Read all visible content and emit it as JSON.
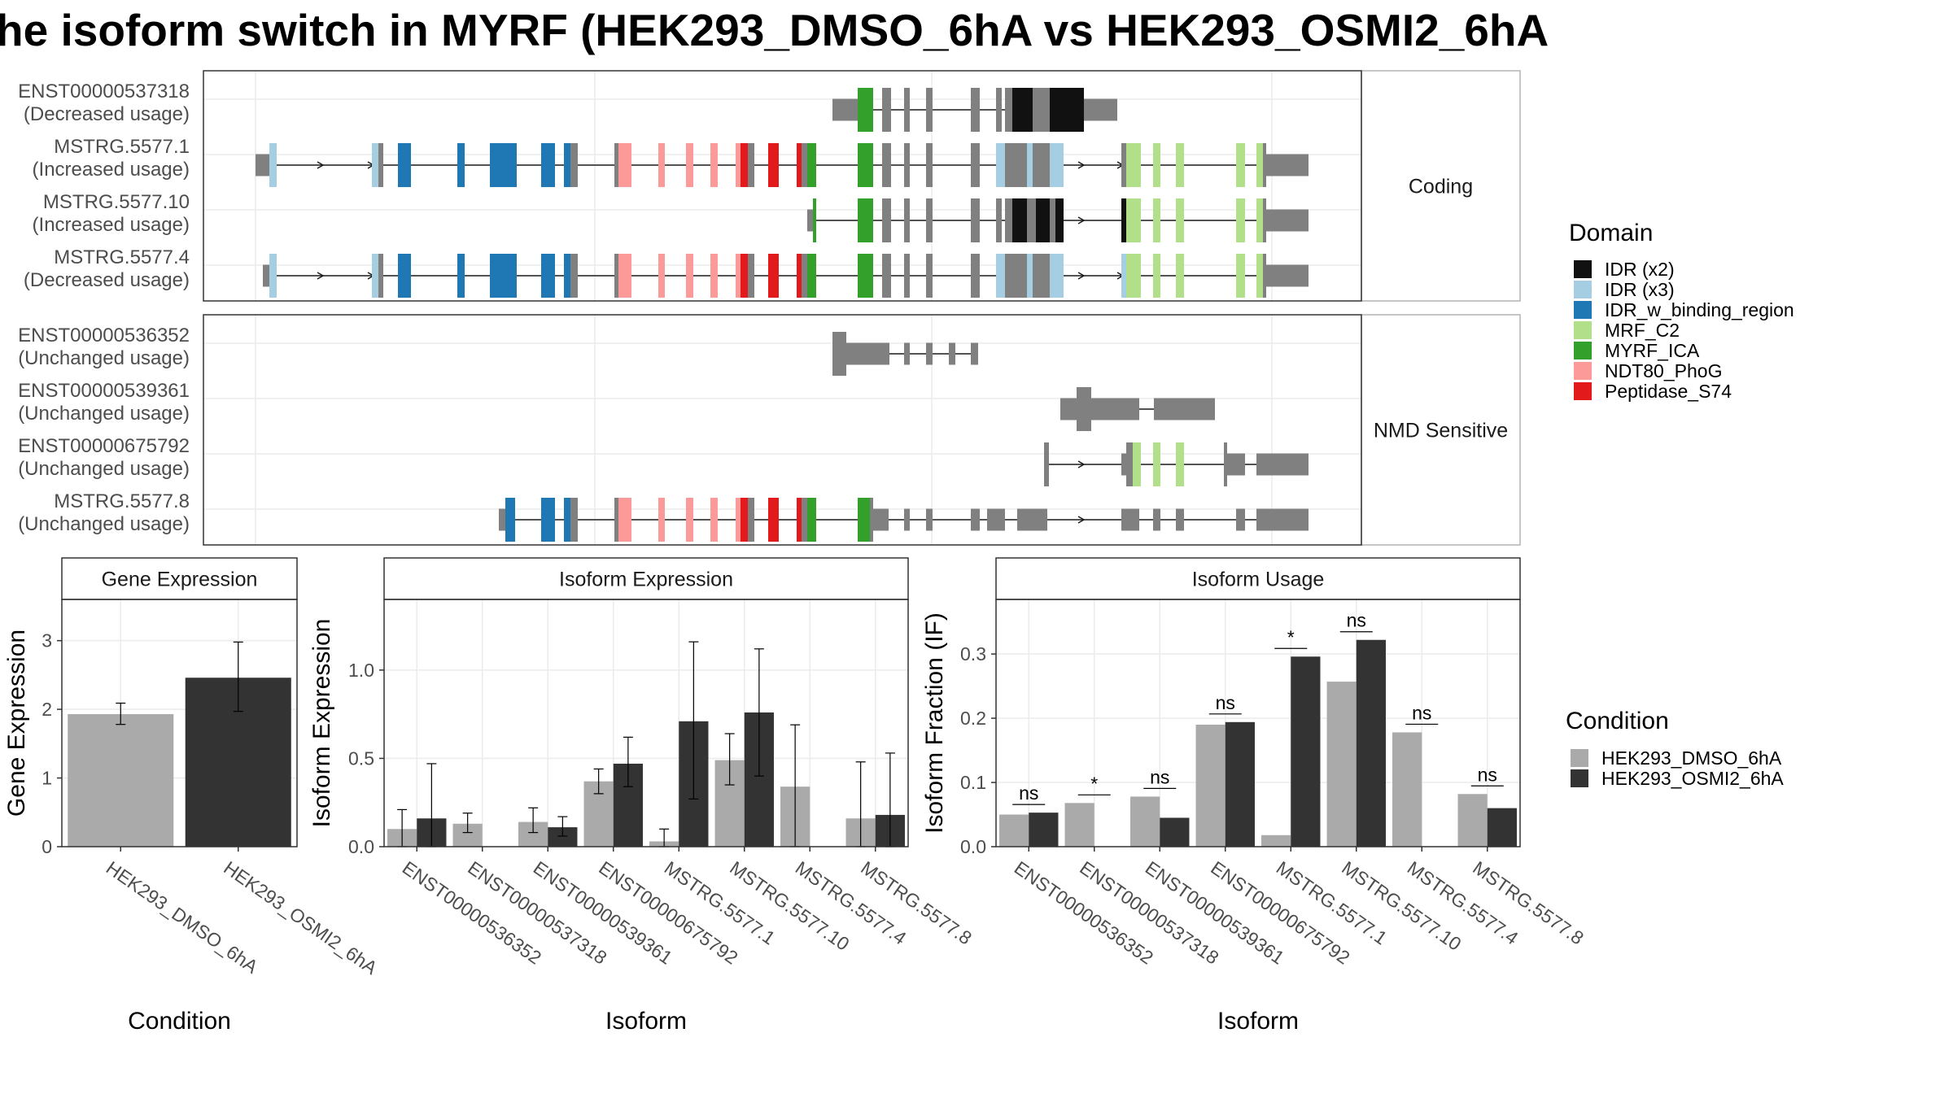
{
  "title": "he isoform switch in MYRF (HEK293_DMSO_6hA vs HEK293_OSMI2_6hA",
  "colors": {
    "dmso": "#aaaaaa",
    "osmi": "#333333",
    "gene_body": "#808080",
    "IDR (x2)": "#111111",
    "IDR (x3)": "#a6cee3",
    "IDR_w_binding_region": "#1f78b4",
    "MRF_C2": "#b2df8a",
    "MYRF_ICA": "#33a02c",
    "NDT80_PhoG": "#fb9a99",
    "Peptidase_S74": "#e31a1c"
  },
  "structure": {
    "panels": [
      {
        "strip": "Coding",
        "tracks": [
          {
            "id": "ENST00000537318",
            "usage": "(Decreased usage)"
          },
          {
            "id": "MSTRG.5577.1",
            "usage": "(Increased usage)"
          },
          {
            "id": "MSTRG.5577.10",
            "usage": "(Increased usage)"
          },
          {
            "id": "MSTRG.5577.4",
            "usage": "(Decreased usage)"
          }
        ]
      },
      {
        "strip": "NMD Sensitive",
        "tracks": [
          {
            "id": "ENST00000536352",
            "usage": "(Unchanged usage)"
          },
          {
            "id": "ENST00000539361",
            "usage": "(Unchanged usage)"
          },
          {
            "id": "ENST00000675792",
            "usage": "(Unchanged usage)"
          },
          {
            "id": "MSTRG.5577.8",
            "usage": "(Unchanged usage)"
          }
        ]
      }
    ]
  },
  "legend_domain": {
    "title": "Domain",
    "items": [
      {
        "label": "IDR (x2)",
        "color": "#111111"
      },
      {
        "label": "IDR (x3)",
        "color": "#a6cee3"
      },
      {
        "label": "IDR_w_binding_region",
        "color": "#1f78b4"
      },
      {
        "label": "MRF_C2",
        "color": "#b2df8a"
      },
      {
        "label": "MYRF_ICA",
        "color": "#33a02c"
      },
      {
        "label": "NDT80_PhoG",
        "color": "#fb9a99"
      },
      {
        "label": "Peptidase_S74",
        "color": "#e31a1c"
      }
    ]
  },
  "legend_condition": {
    "title": "Condition",
    "items": [
      {
        "label": "HEK293_DMSO_6hA",
        "color": "#aaaaaa"
      },
      {
        "label": "HEK293_OSMI2_6hA",
        "color": "#333333"
      }
    ]
  },
  "chart_data": [
    {
      "type": "bar",
      "title": "Gene Expression",
      "xlabel": "Condition",
      "ylabel": "Gene Expression",
      "ylim": [
        0,
        3.6
      ],
      "yticks": [
        0,
        1,
        2,
        3
      ],
      "categories": [
        "HEK293_DMSO_6hA",
        "HEK293_OSMI2_6hA"
      ],
      "values": [
        1.93,
        2.46
      ],
      "err_low": [
        1.78,
        1.97
      ],
      "err_high": [
        2.09,
        2.98
      ],
      "colors": [
        "#aaaaaa",
        "#333333"
      ]
    },
    {
      "type": "bar",
      "title": "Isoform Expression",
      "xlabel": "Isoform",
      "ylabel": "Isoform Expression",
      "ylim": [
        0,
        1.4
      ],
      "yticks": [
        0.0,
        0.5,
        1.0
      ],
      "ytick_labels": [
        "0.0",
        "0.5",
        "1.0"
      ],
      "categories": [
        "ENST00000536352",
        "ENST00000537318",
        "ENST00000539361",
        "ENST00000675792",
        "MSTRG.5577.1",
        "MSTRG.5577.10",
        "MSTRG.5577.4",
        "MSTRG.5577.8"
      ],
      "series": [
        {
          "name": "HEK293_DMSO_6hA",
          "values": [
            0.1,
            0.13,
            0.14,
            0.37,
            0.03,
            0.49,
            0.34,
            0.16
          ],
          "err_low": [
            0.0,
            0.08,
            0.08,
            0.3,
            0.0,
            0.35,
            0.0,
            0.0
          ],
          "err_high": [
            0.21,
            0.19,
            0.22,
            0.44,
            0.1,
            0.64,
            0.69,
            0.48
          ]
        },
        {
          "name": "HEK293_OSMI2_6hA",
          "values": [
            0.16,
            0.0,
            0.11,
            0.47,
            0.71,
            0.76,
            0.0,
            0.18
          ],
          "err_low": [
            0.0,
            0.0,
            0.06,
            0.34,
            0.27,
            0.4,
            0.0,
            0.0
          ],
          "err_high": [
            0.47,
            0.0,
            0.17,
            0.62,
            1.16,
            1.12,
            0.0,
            0.53
          ]
        }
      ]
    },
    {
      "type": "bar",
      "title": "Isoform Usage",
      "xlabel": "Isoform",
      "ylabel": "Isoform Fraction (IF)",
      "ylim": [
        0,
        0.385
      ],
      "yticks": [
        0.0,
        0.1,
        0.2,
        0.3
      ],
      "ytick_labels": [
        "0.0",
        "0.1",
        "0.2",
        "0.3"
      ],
      "categories": [
        "ENST00000536352",
        "ENST00000537318",
        "ENST00000539361",
        "ENST00000675792",
        "MSTRG.5577.1",
        "MSTRG.5577.10",
        "MSTRG.5577.4",
        "MSTRG.5577.8"
      ],
      "series": [
        {
          "name": "HEK293_DMSO_6hA",
          "values": [
            0.05,
            0.068,
            0.078,
            0.19,
            0.018,
            0.257,
            0.178,
            0.082
          ]
        },
        {
          "name": "HEK293_OSMI2_6hA",
          "values": [
            0.053,
            0.0,
            0.045,
            0.194,
            0.296,
            0.322,
            0.0,
            0.06
          ]
        }
      ],
      "significance": [
        "ns",
        "*",
        "ns",
        "ns",
        "*",
        "ns",
        "ns",
        "ns"
      ]
    }
  ]
}
